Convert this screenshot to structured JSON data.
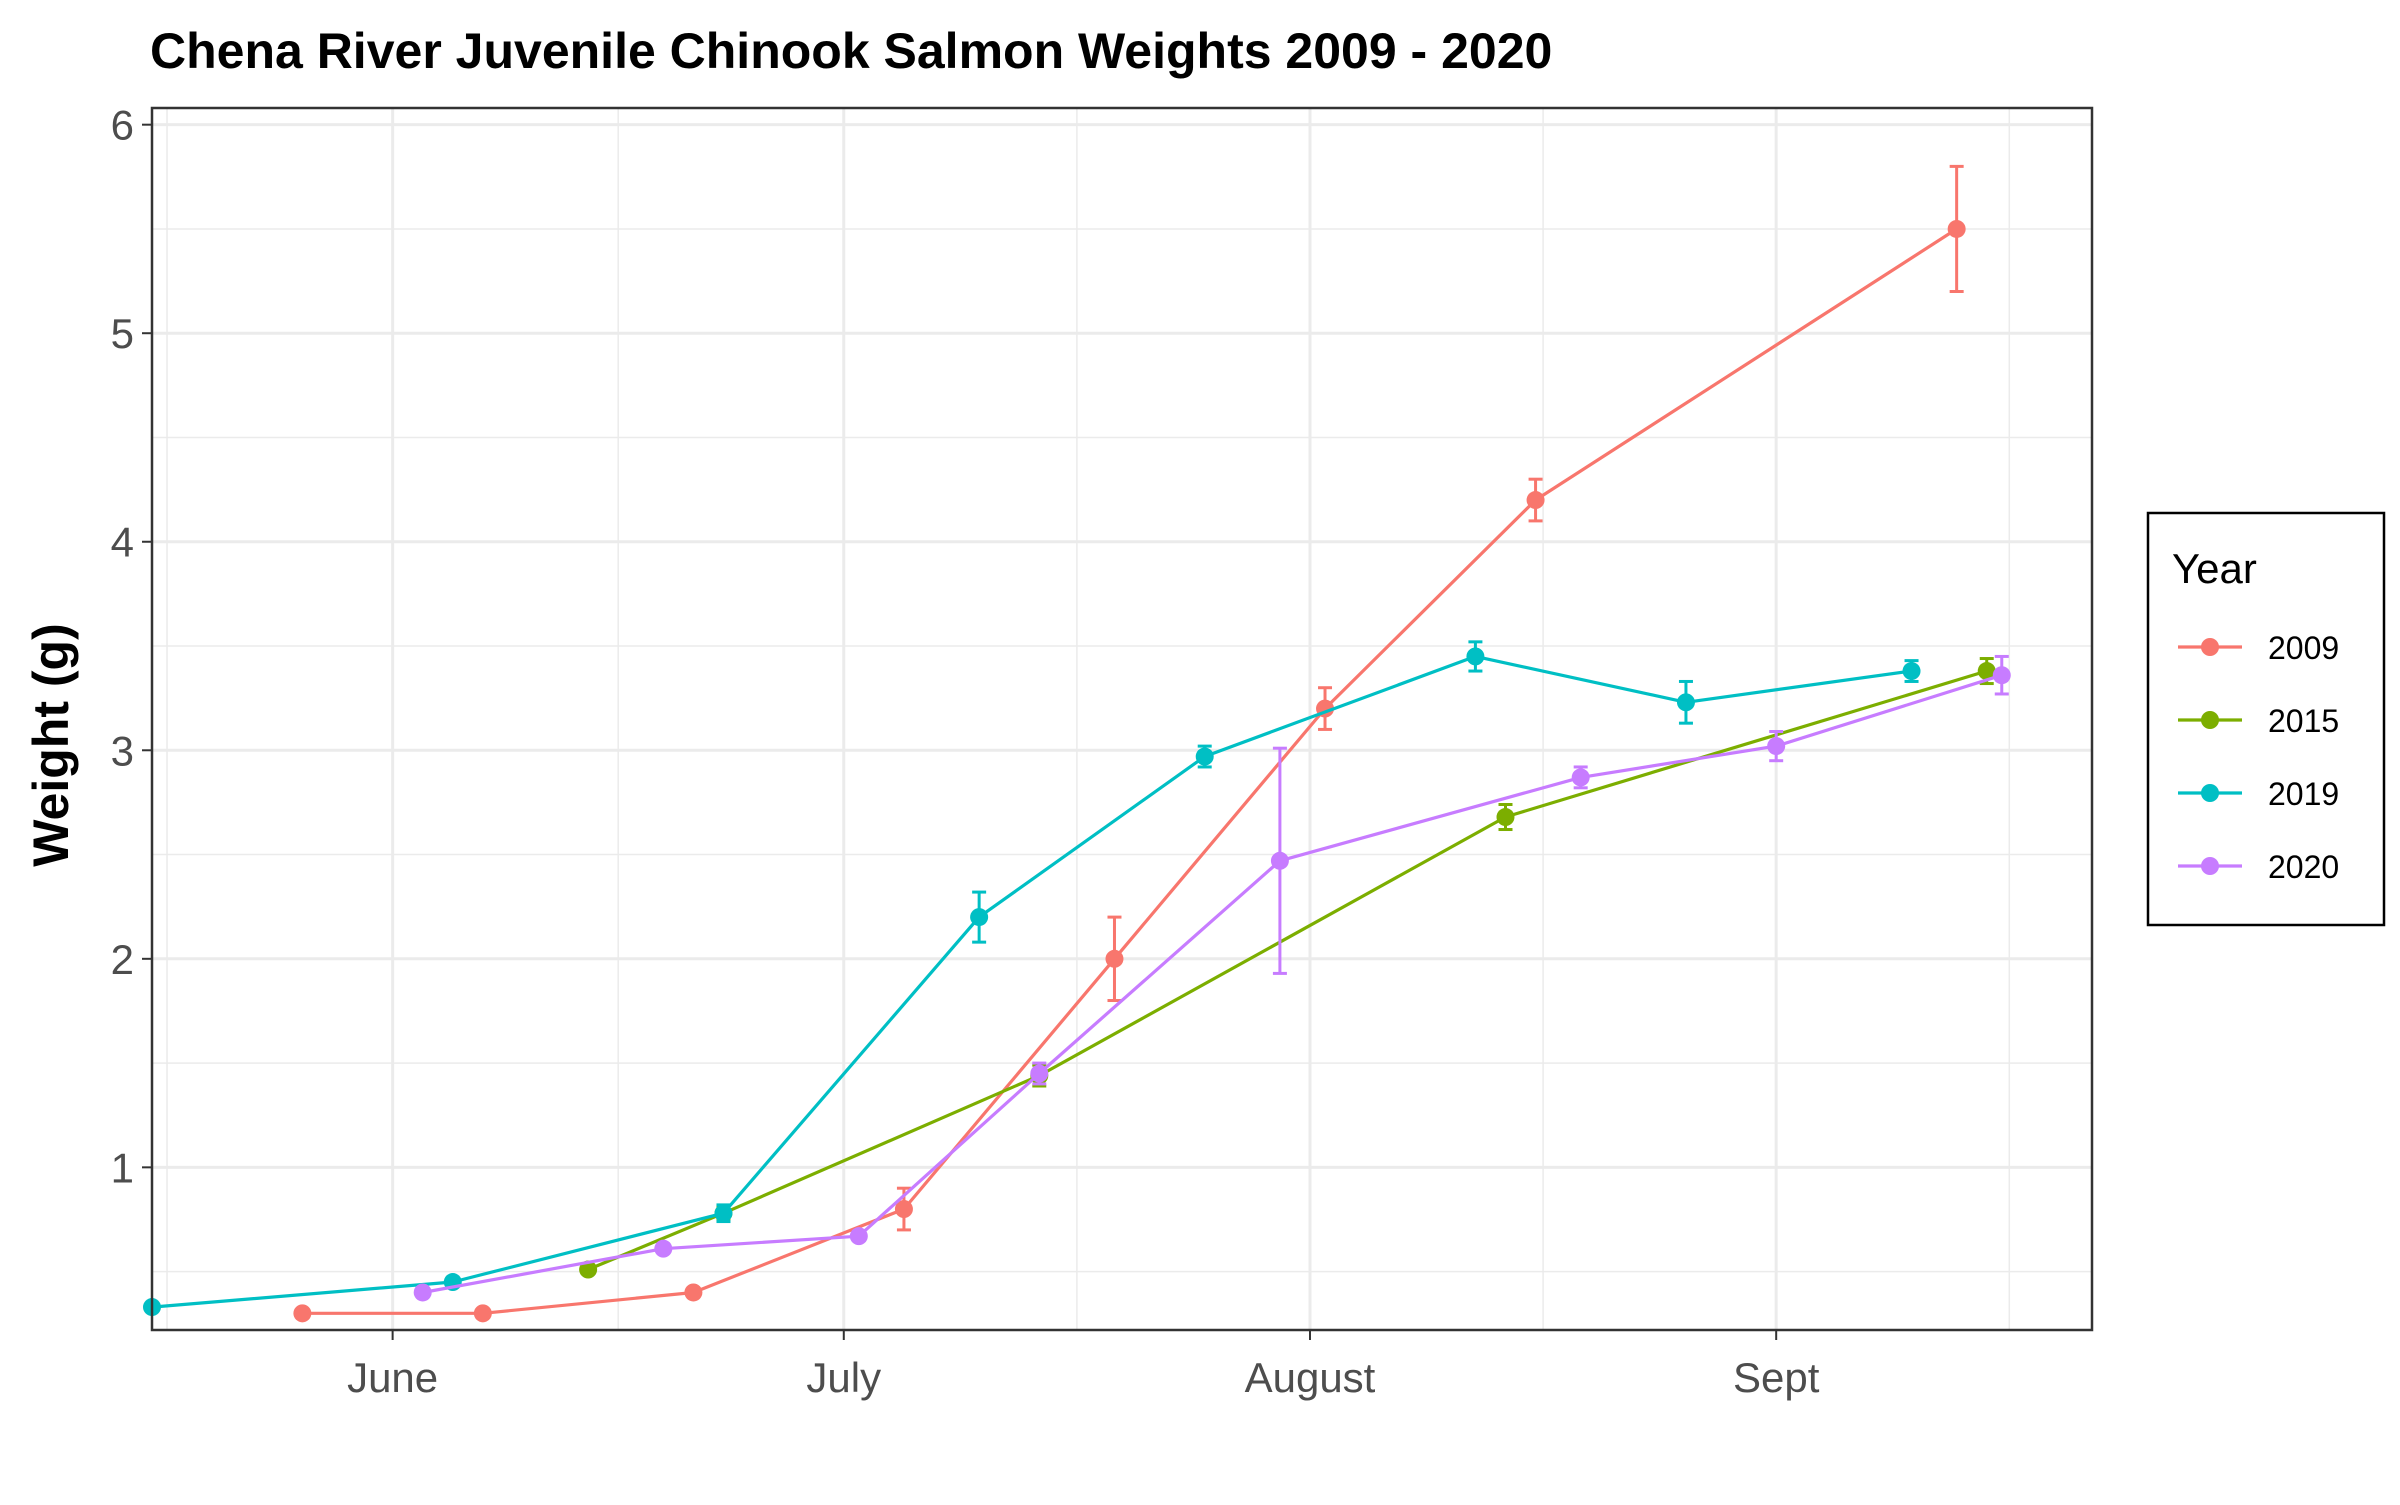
{
  "chart_data": {
    "type": "line",
    "title": "Chena River Juvenile Chinook Salmon Weights 2009 - 2020",
    "xlabel": "",
    "ylabel": "Weight (g)",
    "x_axis": {
      "type": "date",
      "range": [
        "05-16",
        "09-22"
      ],
      "ticks": [
        {
          "date": "06-01",
          "label": "June"
        },
        {
          "date": "07-01",
          "label": "July"
        },
        {
          "date": "08-01",
          "label": "August"
        },
        {
          "date": "09-01",
          "label": "Sept"
        }
      ]
    },
    "ylim": [
      0.22,
      6.08
    ],
    "y_ticks": [
      1,
      2,
      3,
      4,
      5,
      6
    ],
    "grid": true,
    "legend": {
      "title": "Year",
      "position": "right"
    },
    "series": [
      {
        "name": "2009",
        "color": "#F8766D",
        "points": [
          {
            "x": "05-26",
            "y": 0.3,
            "err": 0
          },
          {
            "x": "06-07",
            "y": 0.3,
            "err": 0
          },
          {
            "x": "06-21",
            "y": 0.4,
            "err": 0
          },
          {
            "x": "07-05",
            "y": 0.8,
            "err": 0.1
          },
          {
            "x": "07-19",
            "y": 2.0,
            "err": 0.2
          },
          {
            "x": "08-02",
            "y": 3.2,
            "err": 0.1
          },
          {
            "x": "08-16",
            "y": 4.2,
            "err": 0.1
          },
          {
            "x": "09-13",
            "y": 5.5,
            "err": 0.3
          }
        ]
      },
      {
        "name": "2015",
        "color": "#7CAE00",
        "points": [
          {
            "x": "06-14",
            "y": 0.51,
            "err": 0
          },
          {
            "x": "06-23",
            "y": 0.78,
            "err": 0.03
          },
          {
            "x": "07-14",
            "y": 1.44,
            "err": 0.05
          },
          {
            "x": "08-14",
            "y": 2.68,
            "err": 0.06
          },
          {
            "x": "09-15",
            "y": 3.38,
            "err": 0.06
          }
        ]
      },
      {
        "name": "2019",
        "color": "#00BFC4",
        "points": [
          {
            "x": "05-16",
            "y": 0.33,
            "err": 0
          },
          {
            "x": "06-05",
            "y": 0.45,
            "err": 0
          },
          {
            "x": "06-23",
            "y": 0.78,
            "err": 0.04
          },
          {
            "x": "07-10",
            "y": 2.2,
            "err": 0.12
          },
          {
            "x": "07-25",
            "y": 2.97,
            "err": 0.05
          },
          {
            "x": "08-12",
            "y": 3.45,
            "err": 0.07
          },
          {
            "x": "08-26",
            "y": 3.23,
            "err": 0.1
          },
          {
            "x": "09-10",
            "y": 3.38,
            "err": 0.05
          }
        ]
      },
      {
        "name": "2020",
        "color": "#C77CFF",
        "points": [
          {
            "x": "06-03",
            "y": 0.4,
            "err": 0
          },
          {
            "x": "06-19",
            "y": 0.61,
            "err": 0
          },
          {
            "x": "07-02",
            "y": 0.67,
            "err": 0.02
          },
          {
            "x": "07-14",
            "y": 1.45,
            "err": 0.05
          },
          {
            "x": "07-30",
            "y": 2.47,
            "err": 0.54
          },
          {
            "x": "08-19",
            "y": 2.87,
            "err": 0.05
          },
          {
            "x": "09-01",
            "y": 3.02,
            "err": 0.07
          },
          {
            "x": "09-16",
            "y": 3.36,
            "err": 0.09
          }
        ]
      }
    ]
  }
}
